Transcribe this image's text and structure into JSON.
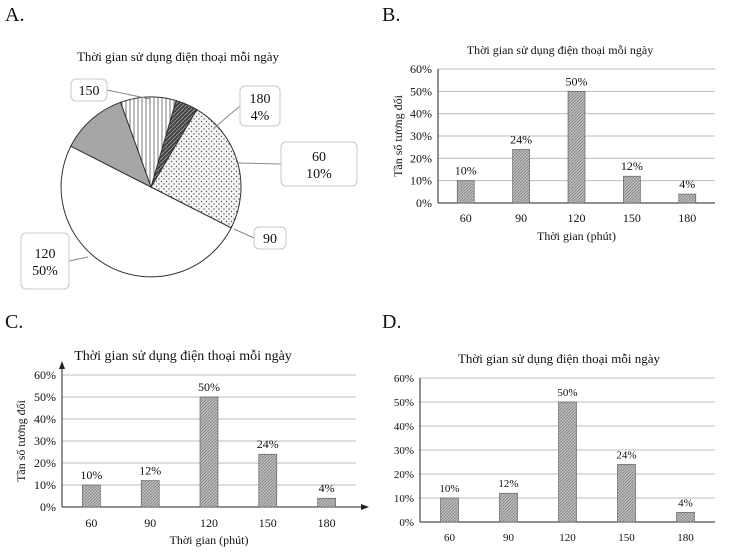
{
  "panels": [
    {
      "letter": "A."
    },
    {
      "letter": "B."
    },
    {
      "letter": "C."
    },
    {
      "letter": "D."
    }
  ],
  "colors": {
    "axis": "#222222",
    "grid": "#bdbdbd",
    "bar_fill": "#bdbdbd",
    "bar_stroke": "#555555",
    "slice_120": "#ffffff",
    "slice_150": "#eeeeee",
    "slice_180": "#555555",
    "slice_60": "#ffffff",
    "slice_90": "#a6a6a6"
  },
  "chart_data": [
    {
      "type": "pie",
      "title": "Thời gian sử dụng điện thoại mỗi ngày",
      "slices": [
        {
          "label": "120",
          "value_label": "50%",
          "value": 50
        },
        {
          "label": "150",
          "value_label": "",
          "value": 24
        },
        {
          "label": "180",
          "value_label": "4%",
          "value": 4
        },
        {
          "label": "60",
          "value_label": "10%",
          "value": 10
        },
        {
          "label": "90",
          "value_label": "",
          "value": 12
        }
      ]
    },
    {
      "type": "bar",
      "title": "Thời gian sử dụng điện thoại mỗi ngày",
      "xlabel": "Thời gian (phút)",
      "ylabel": "Tần số tương đối",
      "categories": [
        "60",
        "90",
        "120",
        "150",
        "180"
      ],
      "values": [
        10,
        24,
        50,
        12,
        4
      ],
      "data_labels": [
        "10%",
        "24%",
        "50%",
        "12%",
        "4%"
      ],
      "yticks": [
        "0%",
        "10%",
        "20%",
        "30%",
        "40%",
        "50%",
        "60%"
      ],
      "ylim": [
        0,
        60
      ]
    },
    {
      "type": "bar",
      "title": "Thời gian sử dụng điện thoại mỗi ngày",
      "xlabel": "Thời gian (phút)",
      "ylabel": "Tần số tương đối",
      "categories": [
        "60",
        "90",
        "120",
        "150",
        "180"
      ],
      "values": [
        10,
        12,
        50,
        24,
        4
      ],
      "data_labels": [
        "10%",
        "12%",
        "50%",
        "24%",
        "4%"
      ],
      "yticks": [
        "0%",
        "10%",
        "20%",
        "30%",
        "40%",
        "50%",
        "60%"
      ],
      "ylim": [
        0,
        60
      ]
    },
    {
      "type": "bar",
      "title": "Thời gian sử dụng điện thoại mỗi ngày",
      "xlabel": "",
      "ylabel": "",
      "categories": [
        "60",
        "90",
        "120",
        "150",
        "180"
      ],
      "values": [
        10,
        12,
        50,
        24,
        4
      ],
      "data_labels": [
        "10%",
        "12%",
        "50%",
        "24%",
        "4%"
      ],
      "yticks": [
        "0%",
        "10%",
        "20%",
        "30%",
        "40%",
        "50%",
        "60%"
      ],
      "ylim": [
        0,
        60
      ]
    }
  ]
}
